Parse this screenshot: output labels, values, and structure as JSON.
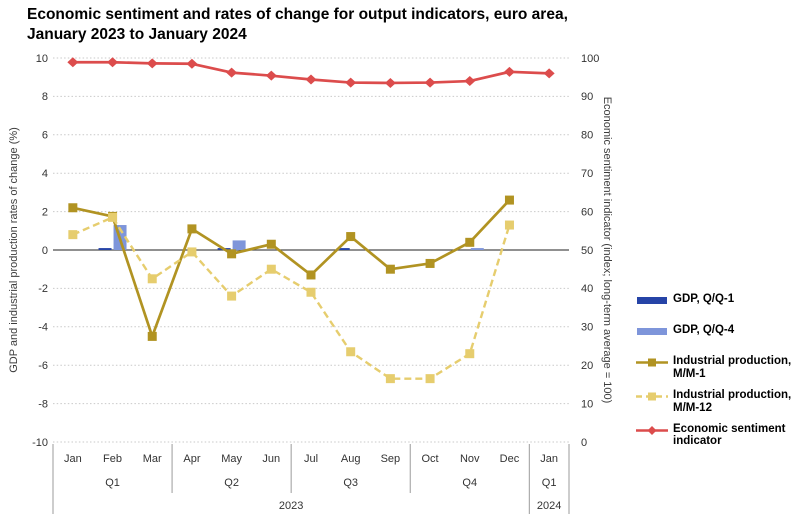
{
  "title": "Economic sentiment and rates of change for output indicators, euro area, January 2023 to January 2024",
  "chart_data": {
    "type": "combo (bar + line)",
    "months": [
      "Jan",
      "Feb",
      "Mar",
      "Apr",
      "May",
      "Jun",
      "Jul",
      "Aug",
      "Sep",
      "Oct",
      "Nov",
      "Dec",
      "Jan"
    ],
    "quarter_labels": [
      {
        "label": "Q1",
        "month_index": 1
      },
      {
        "label": "Q2",
        "month_index": 4
      },
      {
        "label": "Q3",
        "month_index": 7
      },
      {
        "label": "Q4",
        "month_index": 10
      },
      {
        "label": "Q1",
        "month_index": 12
      }
    ],
    "year_labels": [
      {
        "label": "2023",
        "from_month_index": 0,
        "to_month_index": 11
      },
      {
        "label": "2024",
        "from_month_index": 12,
        "to_month_index": 12
      }
    ],
    "left_axis": {
      "title": "GDP and industrial production rates of change (%)",
      "min": -10,
      "max": 10,
      "ticks": [
        10,
        8,
        6,
        4,
        2,
        0,
        -2,
        -4,
        -6,
        -8,
        -10
      ]
    },
    "right_axis": {
      "title": "Economic sentiment indicator (index; long-term average = 100)",
      "min": 0,
      "max": 100,
      "ticks": [
        100,
        90,
        80,
        70,
        60,
        50,
        40,
        30,
        20,
        10,
        0
      ]
    },
    "grid": "dotted horizontal lines, solid zero line",
    "legend_position": "right",
    "series": [
      {
        "name": "GDP, Q/Q-1",
        "type": "bar",
        "axis": "left",
        "color": "#2644a7",
        "quarter_month_index": [
          1,
          4,
          7,
          10
        ],
        "values": [
          0.1,
          0.1,
          0.1,
          0.0
        ]
      },
      {
        "name": "GDP, Q/Q-4",
        "type": "bar",
        "axis": "left",
        "color": "#7e95da",
        "quarter_month_index": [
          1,
          4,
          7,
          10
        ],
        "values": [
          1.3,
          0.5,
          0.0,
          0.1
        ]
      },
      {
        "name": "Industrial production, M/M-1",
        "type": "line",
        "style": "solid",
        "marker": "square",
        "axis": "left",
        "color": "#b19322",
        "values": [
          2.2,
          1.75,
          -4.5,
          1.1,
          -0.2,
          0.3,
          -1.3,
          0.7,
          -1.0,
          -0.7,
          0.4,
          2.6
        ]
      },
      {
        "name": "Industrial production, M/M-12",
        "type": "line",
        "style": "dashed",
        "marker": "square",
        "axis": "left",
        "color": "#e6cd6e",
        "values": [
          0.8,
          1.7,
          -1.5,
          -0.1,
          -2.4,
          -1.0,
          -2.2,
          -5.3,
          -6.7,
          -6.7,
          -5.4,
          1.3
        ]
      },
      {
        "name": "Economic sentiment indicator",
        "type": "line",
        "style": "solid",
        "marker": "diamond",
        "axis": "right",
        "color": "#dc4c4c",
        "values": [
          98.9,
          98.9,
          98.6,
          98.5,
          96.2,
          95.4,
          94.4,
          93.6,
          93.5,
          93.6,
          94.0,
          96.4,
          96.0
        ]
      }
    ],
    "colors": {
      "grid": "#c9c9c9",
      "zero_line": "#4d4d4d",
      "separator": "#9b9b9b",
      "text": "#333333"
    }
  }
}
